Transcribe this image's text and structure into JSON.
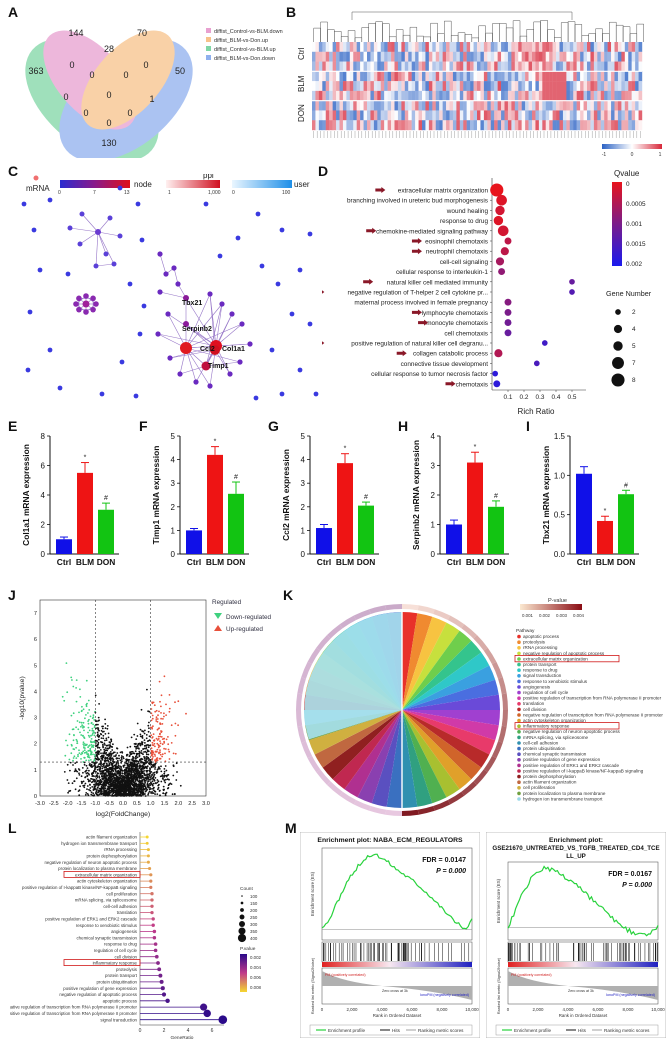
{
  "panel_letters": [
    "A",
    "B",
    "C",
    "D",
    "E",
    "F",
    "G",
    "H",
    "I",
    "J",
    "K",
    "L",
    "M"
  ],
  "venn": {
    "legend": [
      "diffist_Control-vs-BLM.down",
      "diffist_BLM-vs-Don.up",
      "diffist_Control-vs-BLM.up",
      "diffist_BLM-vs-Don.down"
    ],
    "colors": [
      "#e8a0d0",
      "#f7c28a",
      "#7fd6a5",
      "#8fb0ee"
    ],
    "values": {
      "green_only": "363",
      "pink_only": "144",
      "orange_only": "70",
      "blue_only": "50",
      "pink_orange": "28",
      "green_pink": "0",
      "pink_blue": "0",
      "green_orange": "0",
      "orange_blue": "0",
      "green_blue": "130",
      "center": "0",
      "gpo": "0",
      "pob": "0",
      "gpb": "0",
      "gob": "1",
      "g_b_bottom": "0"
    }
  },
  "heatmap": {
    "rows": [
      "Ctrl",
      "BLM",
      "DON"
    ],
    "scale": [
      "-1",
      "0",
      "1"
    ]
  },
  "network": {
    "legend_mrna": "mRNA",
    "legend_node": "node",
    "node_ticks": [
      "0",
      "7",
      "13"
    ],
    "legend_ppi": "ppi",
    "ppi_ticks": [
      "1",
      "1,000"
    ],
    "legend_user": "user",
    "user_ticks": [
      "0",
      "100"
    ],
    "labels": [
      "Tbx21",
      "Serpinb2",
      "Ccl2",
      "Col1a1",
      "Timp1"
    ]
  },
  "go_dot": {
    "terms": [
      "extracellular matrix organization",
      "branching involved in ureteric bud morphogenesis",
      "wound healing",
      "response to drug",
      "chemokine-mediated signaling pathway",
      "eosinophil chemotaxis",
      "neutrophil chemotaxis",
      "cell-cell signaling",
      "cellular response to interleukin-1",
      "natural killer cell mediated immunity",
      "negative regulation of T-helper 2 cell cytokine pr...",
      "maternal process involved in female pregnancy",
      "lymphocyte chemotaxis",
      "monocyte chemotaxis",
      "cell chemotaxis",
      "positive regulation of natural killer cell degranu...",
      "collagen catabolic process",
      "connective tissue development",
      "cellular response to tumor necrosis factor",
      "chemotaxis"
    ],
    "rich_ratio": [
      0.03,
      0.06,
      0.05,
      0.04,
      0.07,
      0.1,
      0.08,
      0.05,
      0.06,
      0.5,
      0.5,
      0.1,
      0.1,
      0.1,
      0.1,
      0.33,
      0.04,
      0.28,
      0.02,
      0.03
    ],
    "qvalue": [
      0.0,
      0.0001,
      0.0002,
      0.0001,
      0.0002,
      0.0004,
      0.0004,
      0.0006,
      0.0008,
      0.0012,
      0.0014,
      0.0009,
      0.001,
      0.0011,
      0.0012,
      0.0016,
      0.0005,
      0.0015,
      0.0018,
      0.0018
    ],
    "gene_count": [
      8,
      6,
      5,
      5,
      6,
      3,
      4,
      4,
      3,
      2,
      2,
      3,
      3,
      3,
      3,
      2,
      4,
      2,
      2,
      3
    ],
    "arrows": [
      0,
      4,
      5,
      6,
      9,
      10,
      12,
      13,
      15,
      16,
      19
    ],
    "xlabel": "Rich Ratio",
    "xticks": [
      "0.1",
      "0.2",
      "0.3",
      "0.4",
      "0.5"
    ],
    "legend_q": "Qvalue",
    "q_ticks": [
      "0",
      "0.0005",
      "0.001",
      "0.0015",
      "0.002"
    ],
    "legend_gene": "Gene Number",
    "gene_ticks": [
      "2",
      "4",
      "5",
      "7",
      "8"
    ]
  },
  "chart_data": [
    {
      "type": "bar",
      "id": "E",
      "categories": [
        "Ctrl",
        "BLM",
        "DON"
      ],
      "values": [
        1.0,
        5.5,
        3.0
      ],
      "errors": [
        0.15,
        0.7,
        0.45
      ],
      "ylabel": "Col1a1 mRNA expression",
      "ylim": [
        0,
        8
      ],
      "yticks": [
        "0",
        "2",
        "4",
        "6",
        "8"
      ],
      "marks": [
        "",
        "*",
        "#"
      ]
    },
    {
      "type": "bar",
      "id": "F",
      "categories": [
        "Ctrl",
        "BLM",
        "DON"
      ],
      "values": [
        1.0,
        4.2,
        2.55
      ],
      "errors": [
        0.08,
        0.35,
        0.5
      ],
      "ylabel": "Timp1 mRNA expression",
      "ylim": [
        0,
        5
      ],
      "yticks": [
        "0",
        "1",
        "2",
        "3",
        "4",
        "5"
      ],
      "marks": [
        "",
        "*",
        "#"
      ]
    },
    {
      "type": "bar",
      "id": "G",
      "categories": [
        "Ctrl",
        "BLM",
        "DON"
      ],
      "values": [
        1.1,
        3.85,
        2.05
      ],
      "errors": [
        0.15,
        0.4,
        0.15
      ],
      "ylabel": "Ccl2 mRNA expression",
      "ylim": [
        0,
        5
      ],
      "yticks": [
        "0",
        "1",
        "2",
        "3",
        "4",
        "5"
      ],
      "marks": [
        "",
        "*",
        "#"
      ]
    },
    {
      "type": "bar",
      "id": "H",
      "categories": [
        "Ctrl",
        "BLM",
        "DON"
      ],
      "values": [
        1.0,
        3.1,
        1.6
      ],
      "errors": [
        0.15,
        0.35,
        0.2
      ],
      "ylabel": "Serpinb2 mRNA expression",
      "ylim": [
        0,
        4
      ],
      "yticks": [
        "0",
        "1",
        "2",
        "3",
        "4"
      ],
      "marks": [
        "",
        "*",
        "#"
      ]
    },
    {
      "type": "bar",
      "id": "I",
      "categories": [
        "Ctrl",
        "BLM",
        "DON"
      ],
      "values": [
        1.02,
        0.42,
        0.76
      ],
      "errors": [
        0.09,
        0.06,
        0.05
      ],
      "ylabel": "Tbx21 mRNA expression",
      "ylim": [
        0,
        1.5
      ],
      "yticks": [
        "0.0",
        "0.5",
        "1.0",
        "1.5"
      ],
      "marks": [
        "",
        "*",
        "#"
      ]
    },
    {
      "type": "scatter",
      "id": "J",
      "xlabel": "log2(FoldChange)",
      "ylabel": "-log10(pvalue)",
      "xlim": [
        -3,
        3
      ],
      "ylim": [
        0,
        7.5
      ],
      "xticks": [
        "-3.0",
        "-2.5",
        "-2.0",
        "-1.5",
        "-1.0",
        "-0.5",
        "0.0",
        "0.5",
        "1.0",
        "1.5",
        "2.0",
        "2.5",
        "3.0"
      ],
      "yticks": [
        "0",
        "1",
        "2",
        "3",
        "4",
        "5",
        "6",
        "7"
      ],
      "thresholds": {
        "fc": 1,
        "p": 1.3
      },
      "legend_title": "Regulated",
      "legend": [
        "Down-regulated",
        "Up-regulated"
      ],
      "colors": [
        "#3fd17f",
        "#e8503a",
        "#111111"
      ]
    },
    {
      "type": "pie",
      "id": "K",
      "legend_title": "P-value",
      "scale_ticks": [
        "0.001",
        "0.002",
        "0.003",
        "0.004"
      ],
      "legend_head": "Pathway",
      "terms": [
        "apoptotic process",
        "proteolysis",
        "rRNA processing",
        "negative regulation of apoptotic process",
        "extracellular matrix organization",
        "protein transport",
        "response to drug",
        "signal transduction",
        "response to xenobiotic stimulus",
        "angiogenesis",
        "regulation of cell cycle",
        "positive regulation of transcription from RNA polymerase II promoter",
        "translation",
        "cell division",
        "negative regulation of transcription from RNA polymerase II promoter",
        "actin cytoskeleton organization",
        "inflammatory response",
        "negative regulation of neuron apoptotic process",
        "mRNA splicing, via spliceosome",
        "cell-cell adhesion",
        "protein ubiquitination",
        "chemical synaptic transmission",
        "positive regulation of gene expression",
        "positive regulation of ERK1 and ERK2 cascade",
        "positive regulation of I-kappaB kinase/NF-kappaB signaling",
        "protein dephosphorylation",
        "actin filament organization",
        "cell proliferation",
        "protein localization to plasma membrane",
        "hydrogen ion transmembrane transport"
      ],
      "boxed": [
        4,
        16
      ]
    },
    {
      "type": "lollipop",
      "id": "L",
      "terms": [
        "actin filament organization",
        "hydrogen ion transmembrane transport",
        "rRNA processing",
        "protein dephosphorylation",
        "negative regulation of neuron apoptotic process",
        "protein localization to plasma membrane",
        "extracellular matrix organization",
        "actin cytoskeleton organization",
        "positive regulation of I-kappaB kinase/NF-kappaB signaling",
        "cell proliferation",
        "mRNA splicing, via spliceosome",
        "cell-cell adhesion",
        "translation",
        "positive regulation of ERK1 and ERK2 cascade",
        "response to xenobiotic stimulus",
        "angiogenesis",
        "chemical synaptic transmission",
        "response to drug",
        "regulation of cell cycle",
        "cell division",
        "inflammatory response",
        "proteolysis",
        "protein transport",
        "protein ubiquitination",
        "positive regulation of gene expression",
        "negative regulation of apoptotic process",
        "apoptotic process",
        "negative regulation of transcription from RNA polymerase II promoter",
        "positive regulation of transcription from RNA polymerase II promoter",
        "signal transduction"
      ],
      "values": [
        0.6,
        0.6,
        0.7,
        0.7,
        0.7,
        0.8,
        0.9,
        0.9,
        0.9,
        1.0,
        1.0,
        1.0,
        1.0,
        1.1,
        1.1,
        1.2,
        1.2,
        1.3,
        1.3,
        1.4,
        1.5,
        1.6,
        1.7,
        1.8,
        1.9,
        2.0,
        2.3,
        5.3,
        5.6,
        6.9
      ],
      "boxed": [
        6,
        20
      ],
      "xlabel": "GeneRatio",
      "xticks": [
        "0",
        "2",
        "4",
        "6"
      ],
      "count_title": "Count",
      "count_ticks": [
        "100",
        "150",
        "200",
        "250",
        "300",
        "350",
        "400"
      ],
      "p_title": "P.value",
      "p_ticks": [
        "0.002",
        "0.004",
        "0.006",
        "0.008"
      ]
    },
    {
      "type": "line",
      "id": "M1",
      "title": "Enrichment plot: NABA_ECM_REGULATORS",
      "fdr": "FDR = 0.0147",
      "p": "P = 0.000",
      "ylabel": "Enrichment score (ES)",
      "ylabel2": "Ranked list metric (Signal2Noise)",
      "xlabel": "Rank in Ordered Dataset",
      "xticks": [
        "0",
        "2,000",
        "4,000",
        "6,000",
        "8,000",
        "10,000"
      ],
      "pos_label": "PM (positively correlated)",
      "neg_label": "IonoPM (negatively correlated)",
      "zero": "Zero cross at 3k",
      "legend": [
        "Enrichment profile",
        "Hits",
        "Ranking metric scores"
      ],
      "es": [
        0,
        0.08,
        0.2,
        0.32,
        0.42,
        0.5,
        0.56,
        0.6,
        0.58,
        0.55,
        0.5,
        0.46,
        0.42,
        0.38,
        0.33,
        0.28,
        0.22,
        0.16,
        0.1,
        0.05,
        0.0,
        0.08
      ]
    },
    {
      "type": "line",
      "id": "M2",
      "title": "Enrichment plot:",
      "title2": "GSE21670_UNTREATED_VS_TGFB_TREATED_CD4_TCE",
      "title3": "LL_UP",
      "fdr": "FDR = 0.0167",
      "p": "P = 0.000",
      "ylabel": "Enrichment score (ES)",
      "ylabel2": "Ranked list metric (Signal2Noise)",
      "xlabel": "Rank in Ordered Dataset",
      "xticks": [
        "0",
        "2,000",
        "4,000",
        "6,000",
        "8,000",
        "10,000"
      ],
      "pos_label": "PM (positively correlated)",
      "neg_label": "IonoPM (negatively correlated)",
      "zero": "Zero cross at 3k",
      "legend": [
        "Enrichment profile",
        "Hits",
        "Ranking metric scores"
      ],
      "es": [
        0,
        0.1,
        0.2,
        0.28,
        0.34,
        0.36,
        0.35,
        0.33,
        0.3,
        0.28,
        0.24,
        0.2,
        0.16,
        0.12,
        0.08,
        0.04,
        0.0,
        -0.02,
        -0.04,
        -0.05,
        -0.03,
        0.0
      ]
    }
  ]
}
